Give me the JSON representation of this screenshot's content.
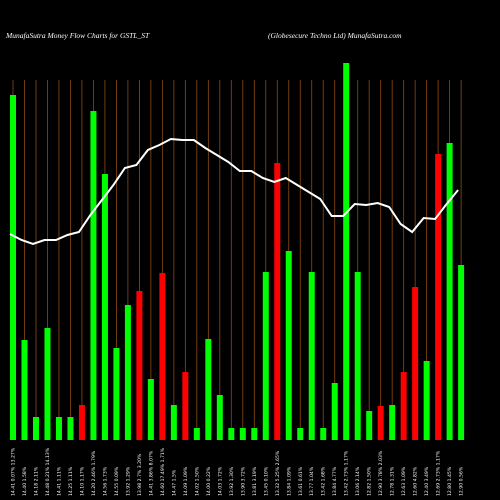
{
  "chart_data": {
    "type": "bar",
    "title": "MunafaSutra  Money Flow  Charts for GSTL_ST",
    "subtitle": "(Globesecure   Techno  Ltd) MunafaSutra.com",
    "categories": [
      "14.41 0.07% 13.27%",
      "14.40 1.58%",
      "14.18 2.11%",
      "14.48 0.21% 14.13%",
      "14.41 1.11%",
      "14.25 1.11%",
      "14.10 1.17%",
      "14.20 2.46% 1.79%",
      "14.56 1.73%",
      "14.55 0.09%",
      "13.92 1.29%",
      "13.98 2.7% 3.20%",
      "14.41 3.86% 8.07%",
      "14.60 17.49% 1.71%",
      "14.47 1.5%",
      "14.09 1.09%",
      "14.02 1.50%",
      "14.00 0.22%",
      "14.03 1.72%",
      "13.92 1.30%",
      "13.90 3.72%",
      "13.81 3.19%",
      "13.45 0.10%",
      "13.32 5.25% 2.65%",
      "13.84 1.09%",
      "13.61 0.61%",
      "13.77 1.04%",
      "13.42 1.68%",
      "13.84 4.77%",
      "13.42 2.73% 1.17%",
      "13.06 2.14%",
      "12.82 1.50%",
      "12.90 3.78% 2.03%",
      "12.78 1.31%",
      "12.63 1.09%",
      "12.60 4.82%",
      "12.40 3.49%",
      "12.69 2.73% 1.17%",
      "12.80 1.45%",
      "12.90 0.56%"
    ],
    "ylim": [
      0,
      380
    ],
    "series": [
      {
        "name": "Money Flow",
        "values": [
          345,
          100,
          23,
          112,
          23,
          23,
          35,
          329,
          266,
          92,
          135,
          149,
          61,
          167,
          35,
          68,
          12,
          101,
          45,
          12,
          12,
          12,
          168,
          277,
          189,
          12,
          168,
          12,
          57,
          377,
          168,
          29,
          34,
          35,
          68,
          153,
          79,
          286,
          297,
          175
        ],
        "colors": [
          "#00ff00",
          "#00ff00",
          "#00ff00",
          "#00ff00",
          "#00ff00",
          "#00ff00",
          "#ff0000",
          "#00ff00",
          "#00ff00",
          "#00ff00",
          "#00ff00",
          "#ff0000",
          "#00ff00",
          "#ff0000",
          "#00ff00",
          "#ff0000",
          "#00ff00",
          "#00ff00",
          "#00ff00",
          "#00ff00",
          "#00ff00",
          "#00ff00",
          "#00ff00",
          "#ff0000",
          "#00ff00",
          "#00ff00",
          "#00ff00",
          "#00ff00",
          "#00ff00",
          "#00ff00",
          "#00ff00",
          "#00ff00",
          "#ff0000",
          "#00ff00",
          "#ff0000",
          "#ff0000",
          "#00ff00",
          "#ff0000",
          "#00ff00",
          "#00ff00"
        ]
      },
      {
        "name": "Price",
        "type": "line",
        "color": "#ffffff",
        "values": [
          206,
          200,
          196,
          200,
          200,
          205,
          208,
          225,
          240,
          255,
          272,
          275,
          290,
          295,
          301,
          300,
          300,
          292,
          285,
          278,
          269,
          269,
          262,
          258,
          262,
          255,
          248,
          241,
          224,
          224,
          236,
          235,
          237,
          233,
          216,
          208,
          222,
          221,
          236,
          250
        ]
      }
    ],
    "grid_color": "#8b4a14"
  }
}
